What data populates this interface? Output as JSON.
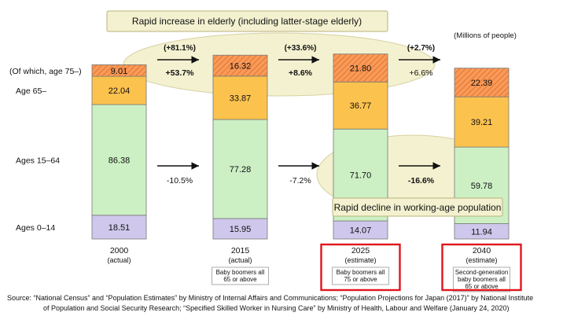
{
  "chart_data": {
    "type": "bar",
    "stacked": true,
    "unit_label": "(Millions of people)",
    "categories": [
      "2000",
      "2015",
      "2025",
      "2040"
    ],
    "category_notes": [
      "(actual)",
      "(actual)",
      "(estimate)",
      "(estimate)"
    ],
    "category_subnotes": [
      [],
      [
        "Baby boomers all",
        "65 or above"
      ],
      [
        "Baby boomers all",
        "75 or above"
      ],
      [
        "Second-generation",
        "baby boomers all",
        "65 or above"
      ]
    ],
    "highlighted_categories": [
      "2025",
      "2040"
    ],
    "series": [
      {
        "name": "Ages 0–14",
        "values": [
          18.51,
          15.95,
          14.07,
          11.94
        ],
        "color": "#cfc8ec"
      },
      {
        "name": "Ages 15–64",
        "values": [
          86.38,
          77.28,
          71.7,
          59.78
        ],
        "color": "#ccf0c4"
      },
      {
        "name": "Age 65–",
        "values": [
          22.04,
          33.87,
          36.77,
          39.21
        ],
        "color": "#fcc24e"
      },
      {
        "name": "(Of which, age 75–)",
        "values": [
          9.01,
          16.32,
          21.8,
          22.39
        ],
        "color": "#f89a5a"
      }
    ],
    "ylim": [
      0,
      140
    ],
    "transitions": [
      {
        "from": "2000",
        "to": "2015",
        "elderly75": "(+81.1%)",
        "elderly": "+53.7%",
        "working": "-10.5%"
      },
      {
        "from": "2015",
        "to": "2025",
        "elderly75": "(+33.6%)",
        "elderly": "+8.6%",
        "working": "-7.2%"
      },
      {
        "from": "2025",
        "to": "2040",
        "elderly75": "(+2.7%)",
        "elderly": "+6.6%",
        "working": "-16.6%"
      }
    ],
    "annotations": {
      "elderly": "Rapid increase in elderly (including latter-stage elderly)",
      "working": "Rapid decline in working-age population"
    },
    "source": [
      "Source: “National Census” and “Population Estimates” by Ministry of Internal Affairs and Communications; “Population Projections for Japan (2017)” by National Institute",
      "of Population and Social Security Research; “Specified Skilled Worker in Nursing Care” by Ministry of Health, Labour and Welfare (January 24, 2020)"
    ],
    "colors": {
      "highlight_box": "#e0161c",
      "callout_fill": "#f3f1d0",
      "callout_border": "#b9b27a"
    }
  }
}
